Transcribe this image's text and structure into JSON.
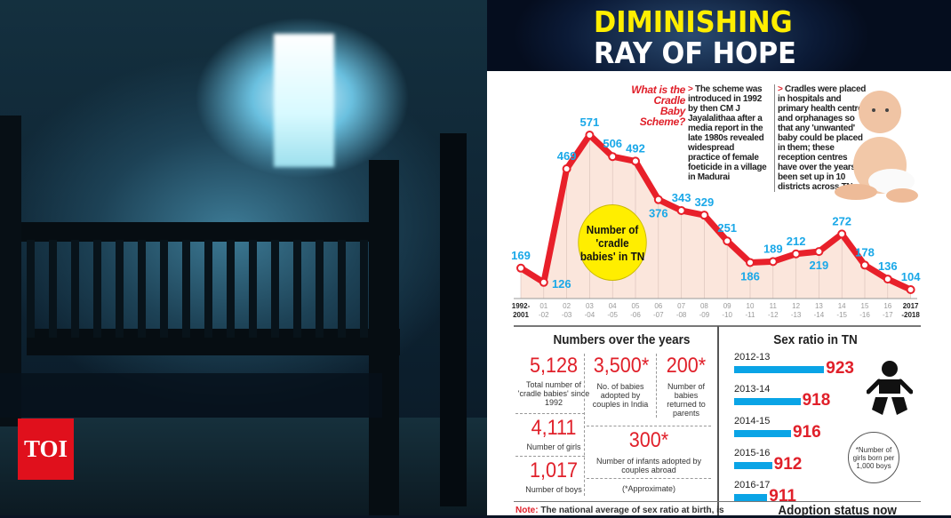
{
  "logo": "TOI",
  "title_line1": "DIMINISHING",
  "title_line2": "RAY OF HOPE",
  "scheme": {
    "question": "What is the Cradle Baby Scheme?",
    "text1": "The scheme was introduced in 1992 by then CM J Jayalalithaa after a media report in the late 1980s revealed widespread practice of female foeticide in a village in Madurai",
    "text2": "Cradles were placed in hospitals and primary health centres and orphanages so that any 'unwanted' baby could be placed in them; these reception centres have over the years been set up in 10 districts across TN"
  },
  "chart_data": {
    "type": "line",
    "title": "Number of 'cradle babies' in TN",
    "categories": [
      "1992-2001",
      "01-02",
      "02-03",
      "03-04",
      "04-05",
      "05-06",
      "06-07",
      "07-08",
      "08-09",
      "09-10",
      "10-11",
      "11-12",
      "12-13",
      "13-14",
      "14-15",
      "15-16",
      "16-17",
      "2017-2018"
    ],
    "values": [
      169,
      126,
      469,
      571,
      506,
      492,
      376,
      343,
      329,
      251,
      186,
      189,
      212,
      219,
      272,
      178,
      136,
      104
    ],
    "line_color": "#e8202a",
    "label_color": "#1aa8e8",
    "fill_color": "#fbe6dc"
  },
  "numbers": {
    "heading": "Numbers over the years",
    "total": {
      "value": "5,128",
      "label": "Total number of 'cradle babies' since 1992"
    },
    "girls": {
      "value": "4,111",
      "label": "Number of girls"
    },
    "boys": {
      "value": "1,017",
      "label": "Number of boys"
    },
    "india": {
      "value": "3,500*",
      "label": "No. of babies adopted by couples in India"
    },
    "returned": {
      "value": "200*",
      "label": "Number of babies returned to parents"
    },
    "abroad": {
      "value": "300*",
      "label": "Number of infants adopted by couples abroad"
    },
    "note": "(*Approximate)"
  },
  "sex_ratio": {
    "heading": "Sex ratio in TN",
    "rows": [
      {
        "year": "2012-13",
        "value": 923
      },
      {
        "year": "2013-14",
        "value": 918
      },
      {
        "year": "2014-15",
        "value": 916
      },
      {
        "year": "2015-16",
        "value": 912
      },
      {
        "year": "2016-17",
        "value": 911
      }
    ],
    "footnote": "*Number of girls born per 1,000 boys",
    "bar_color": "#0aa4e6"
  },
  "footer": {
    "note_label": "Note:",
    "note_text": "The national average of sex ratio at birth, is",
    "adoption_heading": "Adoption status now"
  }
}
